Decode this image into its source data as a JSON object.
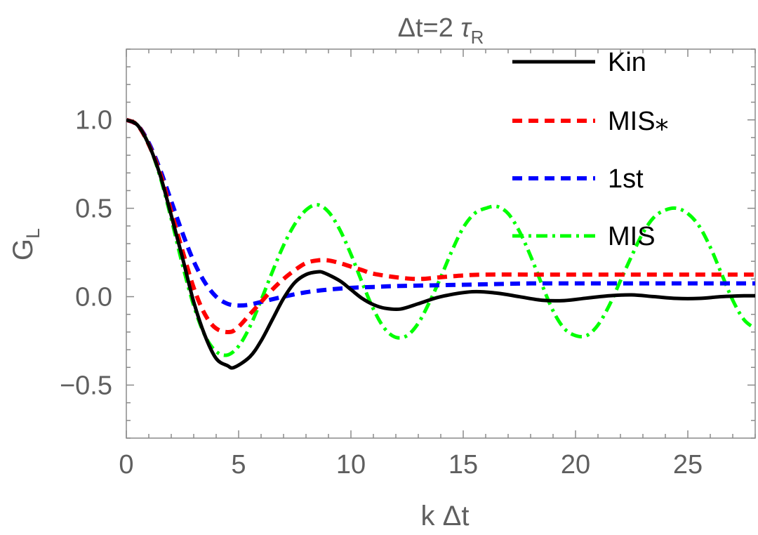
{
  "chart_data": {
    "type": "line",
    "title": {
      "prefix": "Δt=2 ",
      "symbol": "τ",
      "subscript": "R"
    },
    "xlabel": "k Δt",
    "ylabel": {
      "main": "G",
      "subscript": "L"
    },
    "xlim": [
      0,
      28
    ],
    "ylim": [
      -0.8,
      1.4
    ],
    "x_ticks": [
      0,
      5,
      10,
      15,
      20,
      25
    ],
    "x_tick_labels": [
      "0",
      "5",
      "10",
      "15",
      "20",
      "25"
    ],
    "y_ticks": [
      -0.5,
      0.0,
      0.5,
      1.0
    ],
    "y_tick_labels": [
      "−0.5",
      "0.0",
      "0.5",
      "1.0"
    ],
    "legend_position": "top-right",
    "series": [
      {
        "name": "Kin",
        "color": "#000000",
        "style": "solid",
        "x": [
          0,
          0.5,
          1,
          1.5,
          2,
          2.5,
          3,
          3.5,
          4,
          4.5,
          4.8,
          5.5,
          6,
          6.5,
          7,
          7.5,
          8,
          8.5,
          8.8,
          9.5,
          10,
          10.5,
          11,
          11.5,
          12.2,
          13,
          14,
          15.4,
          16.5,
          17.5,
          18.5,
          19.5,
          20.5,
          21.5,
          22.5,
          23.5,
          24.5,
          25.5,
          26.5,
          27.5,
          28
        ],
        "y": [
          1.0,
          0.97,
          0.86,
          0.69,
          0.46,
          0.22,
          -0.03,
          -0.22,
          -0.35,
          -0.39,
          -0.4,
          -0.34,
          -0.25,
          -0.13,
          -0.01,
          0.08,
          0.125,
          0.14,
          0.135,
          0.09,
          0.04,
          -0.01,
          -0.045,
          -0.065,
          -0.07,
          -0.04,
          0.0,
          0.028,
          0.02,
          0.0,
          -0.02,
          -0.022,
          -0.008,
          0.005,
          0.01,
          0.0,
          -0.01,
          -0.01,
          0.0,
          0.005,
          0.005
        ]
      },
      {
        "name": "MIS⁎",
        "color": "#ff0000",
        "style": "dashed",
        "x": [
          0,
          0.5,
          1,
          1.5,
          2,
          2.5,
          3,
          3.5,
          4,
          4.6,
          5,
          5.5,
          6,
          6.5,
          7,
          7.5,
          8,
          8.5,
          9,
          9.5,
          10,
          10.5,
          11,
          12,
          13,
          14,
          15,
          16,
          18,
          20,
          22,
          24,
          26,
          28
        ],
        "y": [
          1.0,
          0.97,
          0.86,
          0.7,
          0.48,
          0.26,
          0.05,
          -0.1,
          -0.18,
          -0.2,
          -0.17,
          -0.1,
          -0.03,
          0.04,
          0.1,
          0.15,
          0.19,
          0.205,
          0.205,
          0.19,
          0.17,
          0.15,
          0.13,
          0.11,
          0.1,
          0.11,
          0.12,
          0.125,
          0.125,
          0.125,
          0.125,
          0.125,
          0.125,
          0.125
        ]
      },
      {
        "name": "1st",
        "color": "#0000ff",
        "style": "dashed",
        "x": [
          0,
          0.5,
          1,
          1.5,
          2,
          2.5,
          3,
          3.5,
          4,
          4.5,
          5,
          5.5,
          6,
          7,
          8,
          9,
          10,
          11,
          12,
          14,
          16,
          18,
          20,
          22,
          24,
          26,
          28
        ],
        "y": [
          1.0,
          0.97,
          0.87,
          0.72,
          0.54,
          0.36,
          0.2,
          0.08,
          0.0,
          -0.04,
          -0.05,
          -0.045,
          -0.03,
          0.0,
          0.025,
          0.04,
          0.05,
          0.055,
          0.06,
          0.065,
          0.07,
          0.075,
          0.075,
          0.075,
          0.075,
          0.075,
          0.075
        ]
      },
      {
        "name": "MIS",
        "color": "#00ff00",
        "style": "dashdot",
        "x": [
          0,
          0.5,
          1,
          1.5,
          2,
          2.5,
          3,
          3.5,
          4,
          4.5,
          5,
          5.5,
          6,
          6.5,
          7,
          7.5,
          8,
          8.5,
          9,
          9.5,
          10,
          10.5,
          11,
          11.5,
          12,
          12.5,
          13,
          13.5,
          14,
          14.5,
          15,
          15.5,
          16,
          16.5,
          17,
          17.5,
          18,
          18.5,
          19,
          19.5,
          20,
          20.5,
          21,
          21.5,
          22,
          22.5,
          23,
          23.5,
          24,
          24.5,
          25,
          25.5,
          26,
          26.5,
          27,
          27.5,
          28
        ],
        "y": [
          1.0,
          0.97,
          0.86,
          0.68,
          0.44,
          0.18,
          -0.05,
          -0.22,
          -0.31,
          -0.33,
          -0.28,
          -0.17,
          -0.02,
          0.14,
          0.29,
          0.41,
          0.49,
          0.52,
          0.48,
          0.38,
          0.24,
          0.08,
          -0.07,
          -0.18,
          -0.23,
          -0.22,
          -0.15,
          -0.03,
          0.11,
          0.26,
          0.39,
          0.47,
          0.5,
          0.51,
          0.47,
          0.37,
          0.23,
          0.07,
          -0.08,
          -0.18,
          -0.22,
          -0.22,
          -0.16,
          -0.05,
          0.09,
          0.23,
          0.36,
          0.45,
          0.49,
          0.5,
          0.47,
          0.4,
          0.28,
          0.13,
          -0.02,
          -0.13,
          -0.18
        ]
      }
    ]
  }
}
